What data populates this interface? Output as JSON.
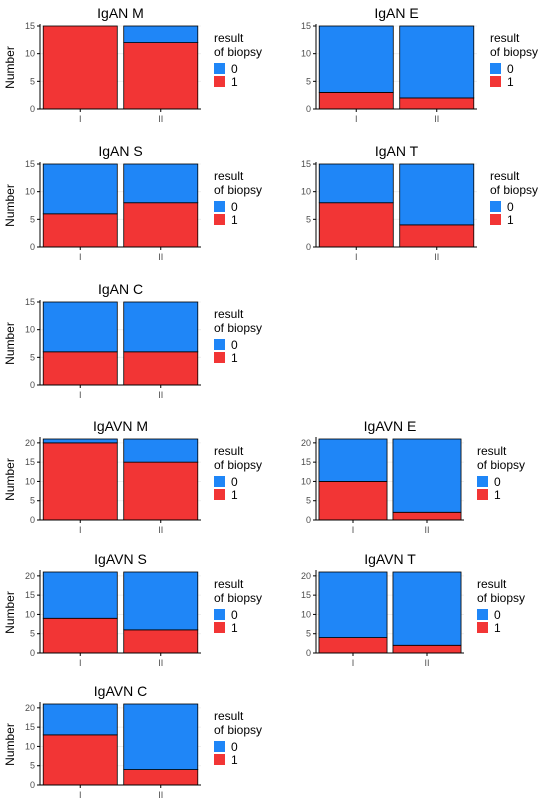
{
  "colors": {
    "stack_0": "#1f86f7",
    "stack_1": "#f23535",
    "axis": "#000000",
    "gridline": "#ebebeb",
    "tick_text": "#4d4d4d"
  },
  "chart_data": [
    {
      "type": "bar",
      "stacked": true,
      "title": "IgAN M",
      "ylabel": "Number",
      "categories": [
        "I",
        "II"
      ],
      "ylim": [
        0,
        15
      ],
      "yticks": [
        0,
        5,
        10,
        15
      ],
      "series": [
        {
          "name": "1",
          "values": [
            15,
            12
          ]
        },
        {
          "name": "0",
          "values": [
            0,
            3
          ]
        }
      ],
      "legend": {
        "title_line1": "result",
        "title_line2": "of biopsy",
        "items": [
          "0",
          "1"
        ],
        "position": "right"
      }
    },
    {
      "type": "bar",
      "stacked": true,
      "title": "IgAN E",
      "ylabel": "",
      "categories": [
        "I",
        "II"
      ],
      "ylim": [
        0,
        15
      ],
      "yticks": [
        0,
        5,
        10,
        15
      ],
      "series": [
        {
          "name": "1",
          "values": [
            3,
            2
          ]
        },
        {
          "name": "0",
          "values": [
            12,
            13
          ]
        }
      ],
      "legend": {
        "title_line1": "result",
        "title_line2": "of biopsy",
        "items": [
          "0",
          "1"
        ],
        "position": "right"
      }
    },
    {
      "type": "bar",
      "stacked": true,
      "title": "IgAN S",
      "ylabel": "Number",
      "categories": [
        "I",
        "II"
      ],
      "ylim": [
        0,
        15
      ],
      "yticks": [
        0,
        5,
        10,
        15
      ],
      "series": [
        {
          "name": "1",
          "values": [
            6,
            8
          ]
        },
        {
          "name": "0",
          "values": [
            9,
            7
          ]
        }
      ],
      "legend": {
        "title_line1": "result",
        "title_line2": "of biopsy",
        "items": [
          "0",
          "1"
        ],
        "position": "right"
      }
    },
    {
      "type": "bar",
      "stacked": true,
      "title": "IgAN T",
      "ylabel": "",
      "categories": [
        "I",
        "II"
      ],
      "ylim": [
        0,
        15
      ],
      "yticks": [
        0,
        5,
        10,
        15
      ],
      "series": [
        {
          "name": "1",
          "values": [
            8,
            4
          ]
        },
        {
          "name": "0",
          "values": [
            7,
            11
          ]
        }
      ],
      "legend": {
        "title_line1": "result",
        "title_line2": "of biopsy",
        "items": [
          "0",
          "1"
        ],
        "position": "right"
      }
    },
    {
      "type": "bar",
      "stacked": true,
      "title": "IgAN C",
      "ylabel": "Number",
      "categories": [
        "I",
        "II"
      ],
      "ylim": [
        0,
        15
      ],
      "yticks": [
        0,
        5,
        10,
        15
      ],
      "series": [
        {
          "name": "1",
          "values": [
            6,
            6
          ]
        },
        {
          "name": "0",
          "values": [
            9,
            9
          ]
        }
      ],
      "legend": {
        "title_line1": "result",
        "title_line2": "of biopsy",
        "items": [
          "0",
          "1"
        ],
        "position": "right"
      }
    },
    {
      "type": "bar",
      "stacked": true,
      "title": "IgAVN M",
      "ylabel": "Number",
      "categories": [
        "I",
        "II"
      ],
      "ylim": [
        0,
        21
      ],
      "yticks": [
        0,
        5,
        10,
        15,
        20
      ],
      "series": [
        {
          "name": "1",
          "values": [
            20,
            15
          ]
        },
        {
          "name": "0",
          "values": [
            1,
            6
          ]
        }
      ],
      "legend": {
        "title_line1": "result",
        "title_line2": "of biopsy",
        "items": [
          "0",
          "1"
        ],
        "position": "right"
      }
    },
    {
      "type": "bar",
      "stacked": true,
      "title": "IgAVN E",
      "ylabel": "",
      "categories": [
        "I",
        "II"
      ],
      "ylim": [
        0,
        21
      ],
      "yticks": [
        0,
        5,
        10,
        15,
        20
      ],
      "series": [
        {
          "name": "1",
          "values": [
            10,
            2
          ]
        },
        {
          "name": "0",
          "values": [
            11,
            19
          ]
        }
      ],
      "legend": {
        "title_line1": "result",
        "title_line2": "of biopsy",
        "items": [
          "0",
          "1"
        ],
        "position": "right"
      }
    },
    {
      "type": "bar",
      "stacked": true,
      "title": "IgAVN S",
      "ylabel": "Number",
      "categories": [
        "I",
        "II"
      ],
      "ylim": [
        0,
        21
      ],
      "yticks": [
        0,
        5,
        10,
        15,
        20
      ],
      "series": [
        {
          "name": "1",
          "values": [
            9,
            6
          ]
        },
        {
          "name": "0",
          "values": [
            12,
            15
          ]
        }
      ],
      "legend": {
        "title_line1": "result",
        "title_line2": "of biopsy",
        "items": [
          "0",
          "1"
        ],
        "position": "right"
      }
    },
    {
      "type": "bar",
      "stacked": true,
      "title": "IgAVN T",
      "ylabel": "",
      "categories": [
        "I",
        "II"
      ],
      "ylim": [
        0,
        21
      ],
      "yticks": [
        0,
        5,
        10,
        15,
        20
      ],
      "series": [
        {
          "name": "1",
          "values": [
            4,
            2
          ]
        },
        {
          "name": "0",
          "values": [
            17,
            19
          ]
        }
      ],
      "legend": {
        "title_line1": "result",
        "title_line2": "of biopsy",
        "items": [
          "0",
          "1"
        ],
        "position": "right"
      }
    },
    {
      "type": "bar",
      "stacked": true,
      "title": "IgAVN C",
      "ylabel": "Number",
      "categories": [
        "I",
        "II"
      ],
      "ylim": [
        0,
        21
      ],
      "yticks": [
        0,
        5,
        10,
        15,
        20
      ],
      "series": [
        {
          "name": "1",
          "values": [
            13,
            4
          ]
        },
        {
          "name": "0",
          "values": [
            8,
            17
          ]
        }
      ],
      "legend": {
        "title_line1": "result",
        "title_line2": "of biopsy",
        "items": [
          "0",
          "1"
        ],
        "position": "right"
      }
    }
  ]
}
